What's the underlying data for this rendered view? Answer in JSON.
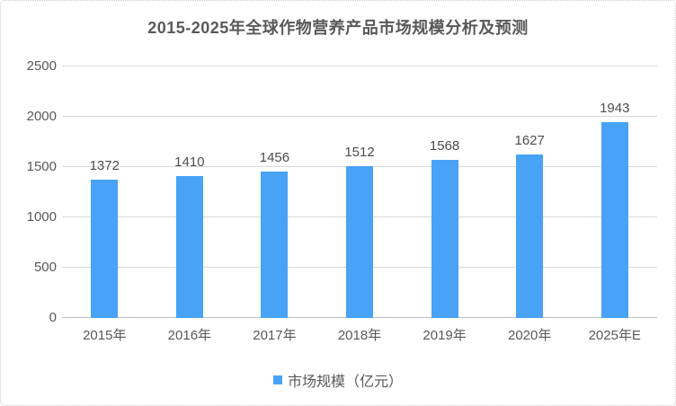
{
  "title": "2015-2025年全球作物营养产品市场规模分析及预测",
  "legend": {
    "label": "市场规模（亿元）"
  },
  "colors": {
    "bar": "#48A2F5",
    "text": "#595959",
    "data_label_text": "#4D4D4D",
    "gridline": "#D9D9D9",
    "baseline": "#BFBFBF",
    "frame_border": "#C9C9C9",
    "background": "#FFFFFF"
  },
  "chart_data": {
    "type": "bar",
    "title": "2015-2025年全球作物营养产品市场规模分析及预测",
    "categories": [
      "2015年",
      "2016年",
      "2017年",
      "2018年",
      "2019年",
      "2020年",
      "2025年E"
    ],
    "series": [
      {
        "name": "市场规模（亿元）",
        "values": [
          1372,
          1410,
          1456,
          1512,
          1568,
          1627,
          1943
        ]
      }
    ],
    "xlabel": "",
    "ylabel": "",
    "ylim": [
      0,
      2500
    ],
    "yticks": [
      0,
      500,
      1000,
      1500,
      2000,
      2500
    ],
    "grid": true,
    "data_labels": true,
    "legend_position": "bottom"
  }
}
